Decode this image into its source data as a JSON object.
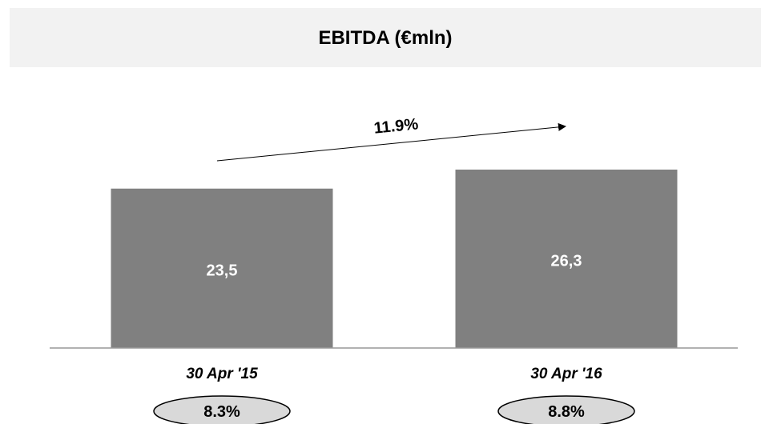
{
  "title": "EBITDA (€mln)",
  "chart_data": {
    "type": "bar",
    "title": "EBITDA (€mln)",
    "categories": [
      "30 Apr '15",
      "30 Apr '16"
    ],
    "values": [
      23.5,
      26.3
    ],
    "value_labels": [
      "23,5",
      "26,3"
    ],
    "margins": [
      "8.3%",
      "8.8%"
    ],
    "growth_label": "11.9%",
    "ylim": [
      0,
      26.3
    ],
    "grid": false,
    "legend": "none",
    "colors": {
      "bar": "#808080",
      "ellipse": "#d9d9d9",
      "axis": "#999999",
      "bar_label": "#ffffff"
    }
  }
}
